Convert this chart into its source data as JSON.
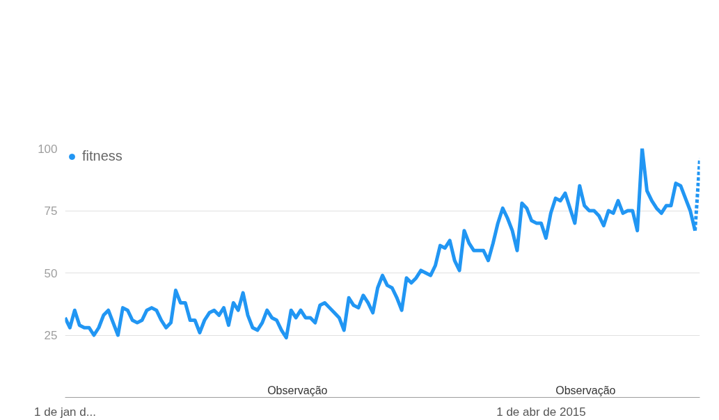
{
  "chart_data": {
    "type": "line",
    "ylim": [
      0,
      100
    ],
    "yticks": [
      25,
      50,
      75,
      100
    ],
    "categories": [
      "1 de jan d...",
      null,
      null,
      null,
      null,
      null,
      null,
      null,
      null,
      null,
      null,
      null,
      null,
      null,
      null,
      null,
      null,
      null,
      null,
      null,
      null,
      null,
      null,
      null,
      null,
      null,
      null,
      null,
      null,
      null,
      null,
      null,
      null,
      null,
      null,
      null,
      null,
      null,
      null,
      null,
      null,
      null,
      null,
      null,
      null,
      null,
      null,
      null,
      null,
      null,
      null,
      null,
      null,
      null,
      null,
      null,
      null,
      null,
      null,
      null,
      null,
      null,
      null,
      null,
      null,
      null,
      null,
      null,
      null,
      null,
      null,
      null,
      null,
      null,
      null,
      null,
      null,
      null,
      null,
      null,
      null,
      null,
      null,
      null,
      null,
      null,
      null,
      null,
      null,
      null,
      null,
      null,
      null,
      null,
      null,
      null,
      null,
      null,
      null,
      "1 de abr de 2015",
      null,
      null,
      null,
      null,
      null,
      null,
      null,
      null,
      null,
      null,
      null,
      null,
      null,
      null,
      null,
      null,
      null,
      null,
      null,
      null,
      null,
      null,
      null,
      null,
      null,
      null,
      null,
      null,
      null,
      null,
      null,
      null,
      null
    ],
    "grid": "y",
    "legend": "top left",
    "line_style": "solid",
    "annotations": [
      "Observação",
      "Observação"
    ],
    "series": [
      {
        "name": "fitness",
        "color": "#2196f3",
        "values": [
          32,
          28,
          35,
          29,
          28,
          28,
          25,
          28,
          33,
          35,
          30,
          25,
          36,
          35,
          31,
          30,
          31,
          35,
          36,
          35,
          31,
          28,
          30,
          43,
          38,
          38,
          31,
          31,
          26,
          31,
          34,
          35,
          33,
          36,
          29,
          38,
          35,
          42,
          33,
          28,
          27,
          30,
          35,
          32,
          31,
          27,
          24,
          35,
          32,
          35,
          32,
          32,
          30,
          37,
          38,
          36,
          34,
          32,
          27,
          40,
          37,
          36,
          41,
          38,
          34,
          44,
          49,
          45,
          44,
          40,
          35,
          48,
          46,
          48,
          51,
          50,
          49,
          53,
          61,
          60,
          63,
          55,
          51,
          67,
          62,
          59,
          59,
          59,
          55,
          62,
          70,
          76,
          72,
          67,
          59,
          78,
          76,
          71,
          70,
          70,
          64,
          74,
          80,
          79,
          82,
          76,
          70,
          85,
          77,
          75,
          75,
          73,
          69,
          75,
          74,
          79,
          74,
          75,
          75,
          67,
          100,
          83,
          79,
          76,
          74,
          77,
          77,
          86,
          85,
          80,
          75,
          67,
          null
        ]
      },
      {
        "color": "#2196f3",
        "line_style": "dotted",
        "values": [
          null,
          null,
          null,
          null,
          null,
          null,
          null,
          null,
          null,
          null,
          null,
          null,
          null,
          null,
          null,
          null,
          null,
          null,
          null,
          null,
          null,
          null,
          null,
          null,
          null,
          null,
          null,
          null,
          null,
          null,
          null,
          null,
          null,
          null,
          null,
          null,
          null,
          null,
          null,
          null,
          null,
          null,
          null,
          null,
          null,
          null,
          null,
          null,
          null,
          null,
          null,
          null,
          null,
          null,
          null,
          null,
          null,
          null,
          null,
          null,
          null,
          null,
          null,
          null,
          null,
          null,
          null,
          null,
          null,
          null,
          null,
          null,
          null,
          null,
          null,
          null,
          null,
          null,
          null,
          null,
          null,
          null,
          null,
          null,
          null,
          null,
          null,
          null,
          null,
          null,
          null,
          null,
          null,
          null,
          null,
          null,
          null,
          null,
          null,
          null,
          null,
          null,
          null,
          null,
          null,
          null,
          null,
          null,
          null,
          null,
          null,
          null,
          null,
          null,
          null,
          null,
          null,
          null,
          null,
          null,
          null,
          null,
          null,
          null,
          null,
          null,
          null,
          null,
          null,
          null,
          null,
          67,
          96
        ]
      }
    ]
  }
}
